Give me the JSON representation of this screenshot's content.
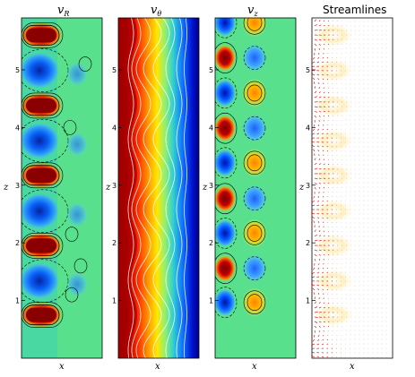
{
  "chart_data": [
    {
      "type": "heatmap",
      "title": "v_R",
      "title_main": "v",
      "title_sub": "R",
      "xlabel": "x",
      "ylabel": "z",
      "ylim": [
        0,
        5.9
      ],
      "yticks": [
        "1",
        "2",
        "3",
        "4",
        "5"
      ],
      "colormap": "jet",
      "pattern": "alternating red/blue cells along inner wall",
      "cell_centers_z": [
        0.75,
        1.34,
        1.95,
        2.55,
        3.17,
        3.77,
        4.38,
        4.99,
        5.6
      ],
      "cell_signs": [
        1,
        -1,
        1,
        -1,
        1,
        -1,
        1,
        -1,
        1
      ]
    },
    {
      "type": "heatmap",
      "title": "v_θ",
      "title_main": "v",
      "title_sub": "θ",
      "xlabel": "x",
      "ylabel": "z",
      "ylim": [
        0,
        5.9
      ],
      "yticks": [
        "1",
        "2",
        "3",
        "4",
        "5"
      ],
      "colormap": "jet",
      "pattern": "azimuthal velocity decreasing from inner wall (dark red) to outer wall (dark blue) with wavy vortex modulation"
    },
    {
      "type": "heatmap",
      "title": "v_z",
      "title_main": "v",
      "title_sub": "z",
      "xlabel": "x",
      "ylabel": "z",
      "ylim": [
        0,
        5.9
      ],
      "yticks": [
        "1",
        "2",
        "3",
        "4",
        "5"
      ],
      "colormap": "jet",
      "pattern": "checkerboard of axial velocity cells"
    },
    {
      "type": "heatmap",
      "title": "Streamlines",
      "xlabel": "x",
      "ylabel": "z",
      "ylim": [
        0,
        5.9
      ],
      "yticks": [
        "1",
        "2",
        "3",
        "4",
        "5"
      ],
      "pattern": "velocity arrow field in red with jets near inner wall"
    }
  ],
  "colors": {
    "dark_red": "#7f0000",
    "red": "#ff2000",
    "yellow": "#ffe000",
    "green": "#60e090",
    "cyan": "#30c8e8",
    "blue": "#1040ff",
    "dark_blue": "#00008a",
    "arrow": "#e02020"
  }
}
